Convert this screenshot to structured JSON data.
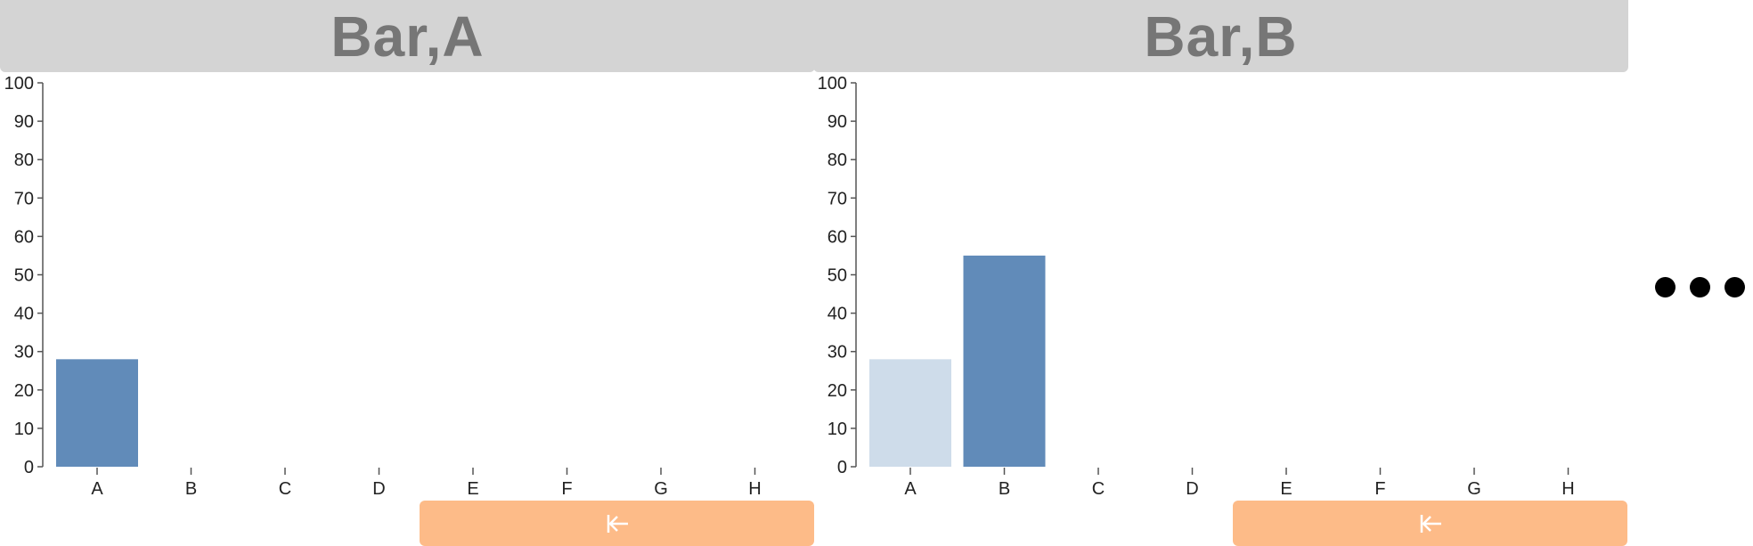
{
  "panels": [
    {
      "title": "Bar,A",
      "back_button_icon": "arrow-left-to-bar-icon"
    },
    {
      "title": "Bar,B",
      "back_button_icon": "arrow-left-to-bar-icon"
    }
  ],
  "more_indicator_icon": "ellipsis-icon",
  "colors": {
    "highlight_bar": "#618bb9",
    "faded_bar": "#cedcea",
    "title_bar_bg": "#d4d4d4",
    "title_text": "#767676",
    "button_bg": "#fdbb88"
  },
  "chart_data": [
    {
      "type": "bar",
      "title": "Bar,A",
      "categories": [
        "A",
        "B",
        "C",
        "D",
        "E",
        "F",
        "G",
        "H"
      ],
      "values": [
        28,
        null,
        null,
        null,
        null,
        null,
        null,
        null
      ],
      "highlighted": [
        "A"
      ],
      "ylim": [
        0,
        100
      ],
      "yticks": [
        0,
        10,
        20,
        30,
        40,
        50,
        60,
        70,
        80,
        90,
        100
      ],
      "grid": false,
      "xlabel": "",
      "ylabel": ""
    },
    {
      "type": "bar",
      "title": "Bar,B",
      "categories": [
        "A",
        "B",
        "C",
        "D",
        "E",
        "F",
        "G",
        "H"
      ],
      "values": [
        28,
        55,
        null,
        null,
        null,
        null,
        null,
        null
      ],
      "highlighted": [
        "B"
      ],
      "ylim": [
        0,
        100
      ],
      "yticks": [
        0,
        10,
        20,
        30,
        40,
        50,
        60,
        70,
        80,
        90,
        100
      ],
      "grid": false,
      "xlabel": "",
      "ylabel": ""
    }
  ]
}
